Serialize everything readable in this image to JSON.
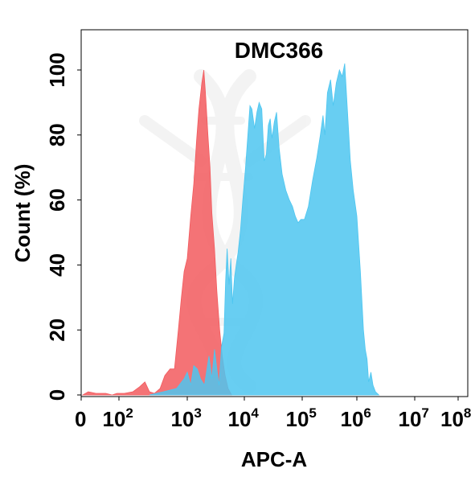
{
  "chart_data": {
    "type": "area",
    "title": "DMC366",
    "xlabel": "APC-A",
    "ylabel": "Count  (%)",
    "x_scale": "log",
    "xlim": [
      0,
      100000000
    ],
    "ylim": [
      0,
      107
    ],
    "x_ticks": [
      {
        "value": 0,
        "base": "0",
        "exp": ""
      },
      {
        "value": 100,
        "base": "10",
        "exp": "2"
      },
      {
        "value": 1000,
        "base": "10",
        "exp": "3"
      },
      {
        "value": 10000,
        "base": "10",
        "exp": "4"
      },
      {
        "value": 100000,
        "base": "10",
        "exp": "5"
      },
      {
        "value": 1000000,
        "base": "10",
        "exp": "6"
      },
      {
        "value": 10000000,
        "base": "10",
        "exp": "7"
      },
      {
        "value": 100000000,
        "base": "10",
        "exp": "8"
      }
    ],
    "y_ticks": [
      "0",
      "20",
      "40",
      "60",
      "80",
      "100"
    ],
    "grid": false,
    "series": [
      {
        "color": "#f25a5e",
        "fill_opacity": 0.85,
        "points": [
          [
            15,
            0
          ],
          [
            20,
            1
          ],
          [
            30,
            0.5
          ],
          [
            50,
            0.5
          ],
          [
            70,
            0
          ],
          [
            90,
            0.5
          ],
          [
            120,
            0.5
          ],
          [
            160,
            1
          ],
          [
            200,
            2.5
          ],
          [
            240,
            4
          ],
          [
            280,
            1
          ],
          [
            330,
            0.5
          ],
          [
            400,
            2
          ],
          [
            470,
            6
          ],
          [
            560,
            8
          ],
          [
            650,
            8
          ],
          [
            740,
            20
          ],
          [
            820,
            30
          ],
          [
            900,
            38
          ],
          [
            1000,
            42
          ],
          [
            1150,
            55
          ],
          [
            1300,
            65
          ],
          [
            1450,
            78
          ],
          [
            1600,
            88
          ],
          [
            1800,
            96
          ],
          [
            1950,
            100
          ],
          [
            2100,
            92
          ],
          [
            2300,
            80
          ],
          [
            2500,
            70
          ],
          [
            2700,
            56
          ],
          [
            3000,
            45
          ],
          [
            3300,
            32
          ],
          [
            3700,
            20
          ],
          [
            4100,
            12
          ],
          [
            4600,
            6
          ],
          [
            5200,
            2
          ],
          [
            6000,
            0
          ]
        ]
      },
      {
        "color": "#4dc6f0",
        "fill_opacity": 0.85,
        "points": [
          [
            280,
            0
          ],
          [
            450,
            1
          ],
          [
            700,
            2
          ],
          [
            900,
            5
          ],
          [
            1000,
            7
          ],
          [
            1150,
            3
          ],
          [
            1300,
            9
          ],
          [
            1500,
            8
          ],
          [
            1700,
            5
          ],
          [
            2000,
            3
          ],
          [
            2400,
            12
          ],
          [
            2700,
            5
          ],
          [
            3000,
            14
          ],
          [
            3300,
            8
          ],
          [
            3600,
            3
          ],
          [
            4000,
            15
          ],
          [
            4400,
            19
          ],
          [
            4700,
            35
          ],
          [
            5000,
            45
          ],
          [
            5400,
            34
          ],
          [
            5800,
            42
          ],
          [
            6200,
            28
          ],
          [
            6700,
            36
          ],
          [
            7200,
            40
          ],
          [
            7800,
            44
          ],
          [
            8600,
            51
          ],
          [
            9400,
            60
          ],
          [
            10500,
            70
          ],
          [
            11500,
            80
          ],
          [
            12500,
            89
          ],
          [
            13500,
            88
          ],
          [
            15000,
            82
          ],
          [
            16500,
            87
          ],
          [
            18000,
            90
          ],
          [
            20000,
            88
          ],
          [
            22000,
            72
          ],
          [
            24000,
            74
          ],
          [
            26000,
            83
          ],
          [
            28000,
            85
          ],
          [
            30000,
            79
          ],
          [
            33000,
            84
          ],
          [
            36000,
            87
          ],
          [
            40000,
            76
          ],
          [
            45000,
            68
          ],
          [
            52000,
            63
          ],
          [
            60000,
            60
          ],
          [
            68000,
            58
          ],
          [
            76000,
            55
          ],
          [
            85000,
            53
          ],
          [
            95000,
            54
          ],
          [
            110000,
            54
          ],
          [
            130000,
            58
          ],
          [
            155000,
            66
          ],
          [
            185000,
            73
          ],
          [
            215000,
            80
          ],
          [
            240000,
            86
          ],
          [
            260000,
            80
          ],
          [
            290000,
            93
          ],
          [
            330000,
            97
          ],
          [
            370000,
            89
          ],
          [
            420000,
            96
          ],
          [
            480000,
            100
          ],
          [
            540000,
            98
          ],
          [
            600000,
            102
          ],
          [
            660000,
            90
          ],
          [
            760000,
            72
          ],
          [
            860000,
            63
          ],
          [
            1000000,
            55
          ],
          [
            1150000,
            38
          ],
          [
            1300000,
            20
          ],
          [
            1400000,
            14
          ],
          [
            1500000,
            11
          ],
          [
            1600000,
            4
          ],
          [
            1750000,
            7
          ],
          [
            1900000,
            3
          ],
          [
            2100000,
            1
          ],
          [
            2400000,
            0
          ]
        ]
      }
    ]
  }
}
